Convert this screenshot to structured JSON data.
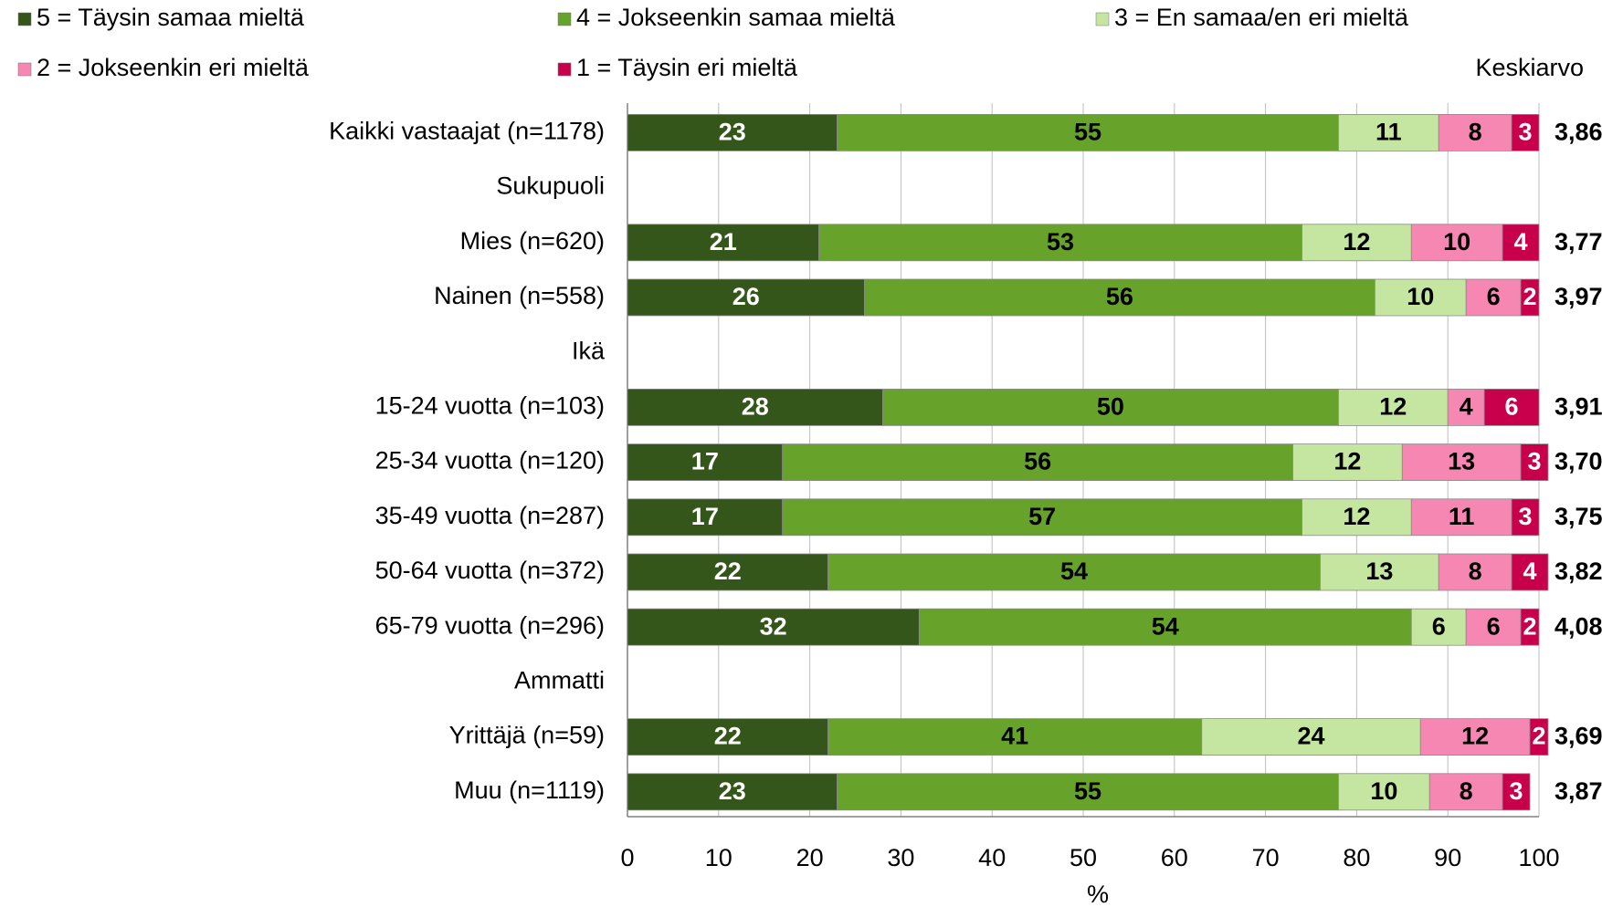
{
  "chart_data": {
    "type": "stacked-bar-horizontal",
    "x_label": "%",
    "mean_title": "Keskiarvo",
    "categories": [
      "Kaikki vastaajat (n=1178)",
      "Sukupuoli",
      "Mies (n=620)",
      "Nainen (n=558)",
      "Ikä",
      "15-24 vuotta (n=103)",
      "25-34 vuotta (n=120)",
      "35-49 vuotta (n=287)",
      "50-64 vuotta (n=372)",
      "65-79 vuotta (n=296)",
      "Ammatti",
      "Yrittäjä (n=59)",
      "Muu (n=1119)"
    ],
    "series": [
      {
        "name": "5 = Täysin samaa mieltä",
        "color": "#34561a",
        "label_color": "#ffffff",
        "values": [
          23,
          null,
          21,
          26,
          null,
          28,
          17,
          17,
          22,
          32,
          null,
          22,
          23
        ]
      },
      {
        "name": "4 = Jokseenkin samaa mieltä",
        "color": "#67a22b",
        "label_color": "#000000",
        "values": [
          55,
          null,
          53,
          56,
          null,
          50,
          56,
          57,
          54,
          54,
          null,
          41,
          55
        ]
      },
      {
        "name": "3 = En samaa/en eri mieltä",
        "color": "#c5e6a0",
        "label_color": "#000000",
        "values": [
          11,
          null,
          12,
          10,
          null,
          12,
          12,
          12,
          13,
          6,
          null,
          24,
          10
        ]
      },
      {
        "name": "2 = Jokseenkin eri mieltä",
        "color": "#f587b2",
        "label_color": "#000000",
        "values": [
          8,
          null,
          10,
          6,
          null,
          4,
          13,
          11,
          8,
          6,
          null,
          12,
          8
        ]
      },
      {
        "name": "1 = Täysin eri mieltä",
        "color": "#c8004b",
        "label_color": "#ffffff",
        "values": [
          3,
          null,
          4,
          2,
          null,
          6,
          3,
          3,
          4,
          2,
          null,
          2,
          3
        ]
      }
    ],
    "means": [
      3.86,
      null,
      3.77,
      3.97,
      null,
      3.91,
      3.7,
      3.75,
      3.82,
      4.08,
      null,
      3.69,
      3.87
    ],
    "mean_labels": [
      "3,86",
      null,
      "3,77",
      "3,97",
      null,
      "3,91",
      "3,70",
      "3,75",
      "3,82",
      "4,08",
      null,
      "3,69",
      "3,87"
    ],
    "xlim": [
      0,
      100
    ],
    "xticks": [
      0,
      10,
      20,
      30,
      40,
      50,
      60,
      70,
      80,
      90,
      100
    ],
    "grid": true
  }
}
